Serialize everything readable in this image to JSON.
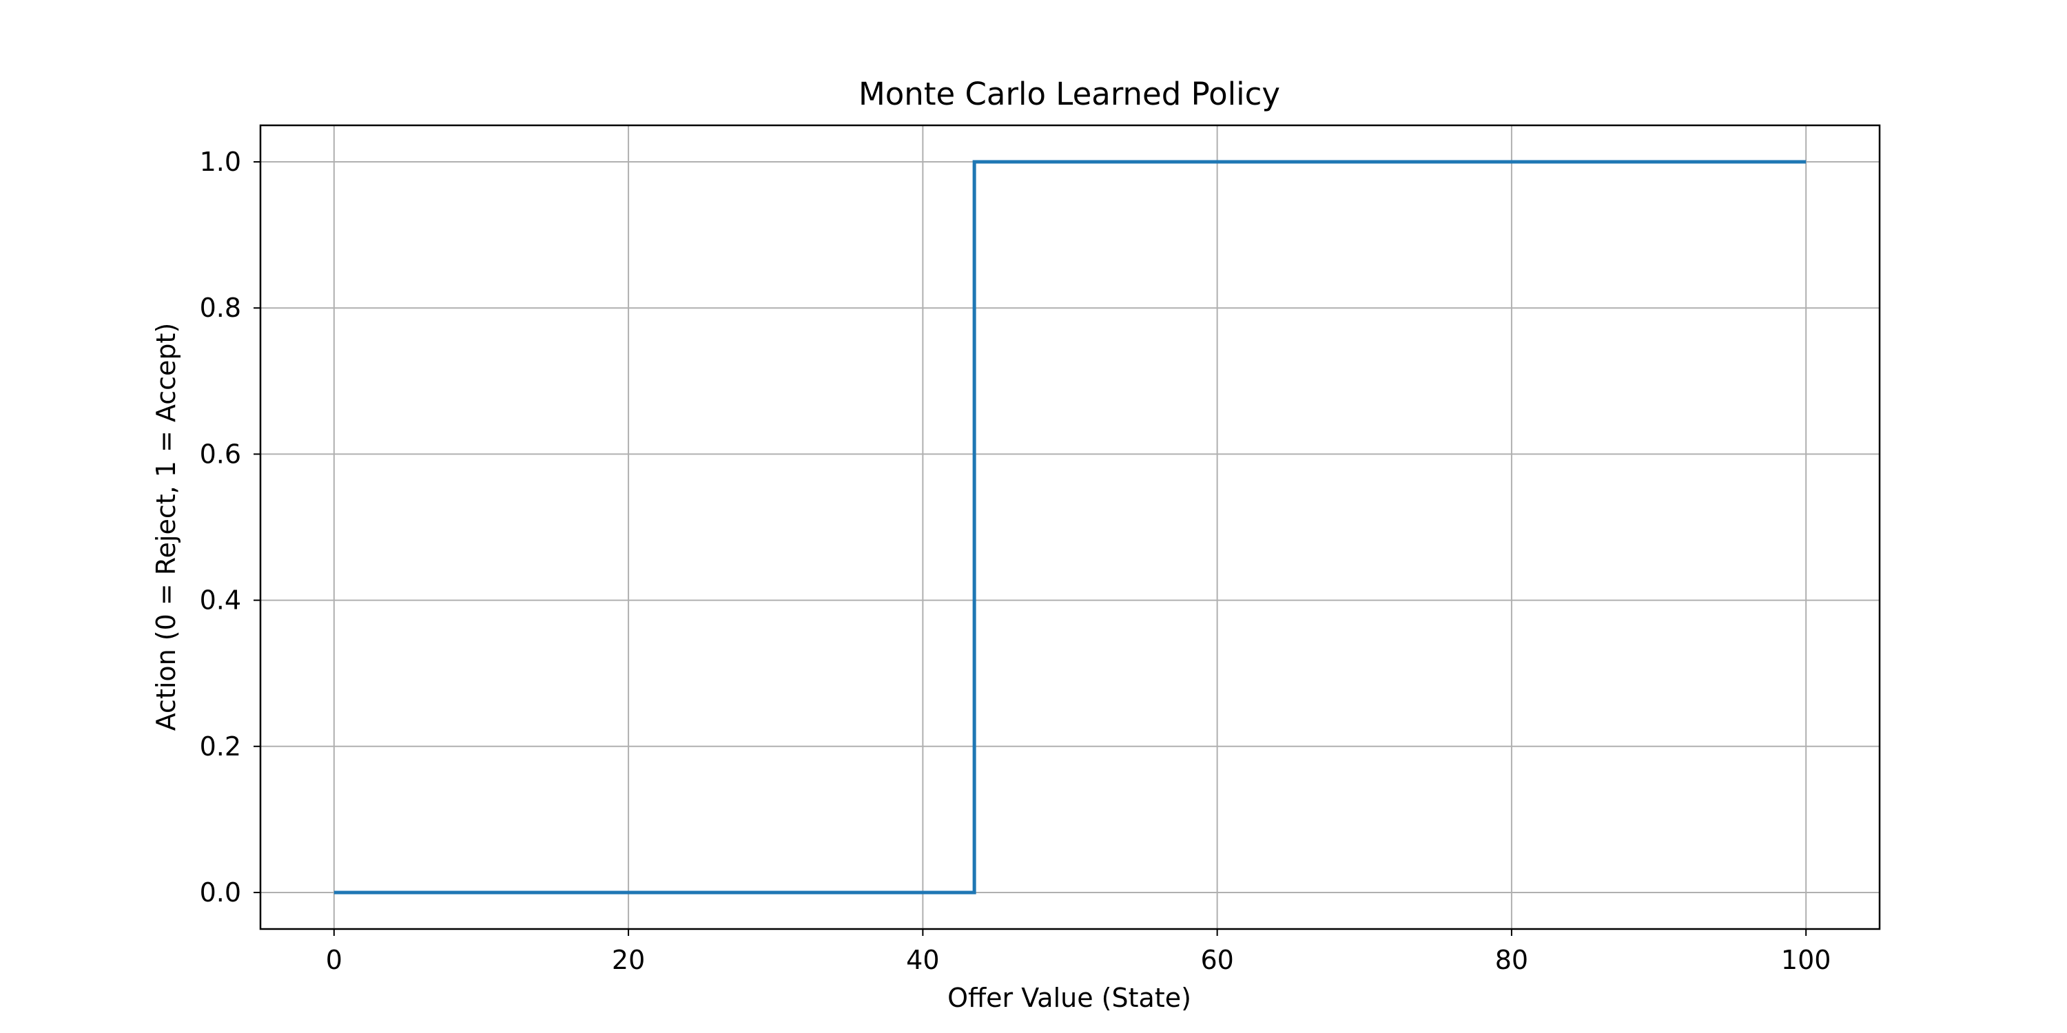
{
  "chart_data": {
    "type": "line",
    "title": "Monte Carlo Learned Policy",
    "xlabel": "Offer Value (State)",
    "ylabel": "Action (0 = Reject, 1 = Accept)",
    "xlim": [
      -5,
      105
    ],
    "ylim": [
      -0.05,
      1.05
    ],
    "xticks": [
      0,
      20,
      40,
      60,
      80,
      100
    ],
    "yticks": [
      0.0,
      0.2,
      0.4,
      0.6,
      0.8,
      1.0
    ],
    "xtick_labels": [
      "0",
      "20",
      "40",
      "60",
      "80",
      "100"
    ],
    "ytick_labels": [
      "0.0",
      "0.2",
      "0.4",
      "0.6",
      "0.8",
      "1.0"
    ],
    "grid": true,
    "series": [
      {
        "color": "#1f77b4",
        "x": [
          0,
          43.5,
          43.5,
          100
        ],
        "y": [
          0,
          0,
          1,
          1
        ]
      }
    ]
  }
}
